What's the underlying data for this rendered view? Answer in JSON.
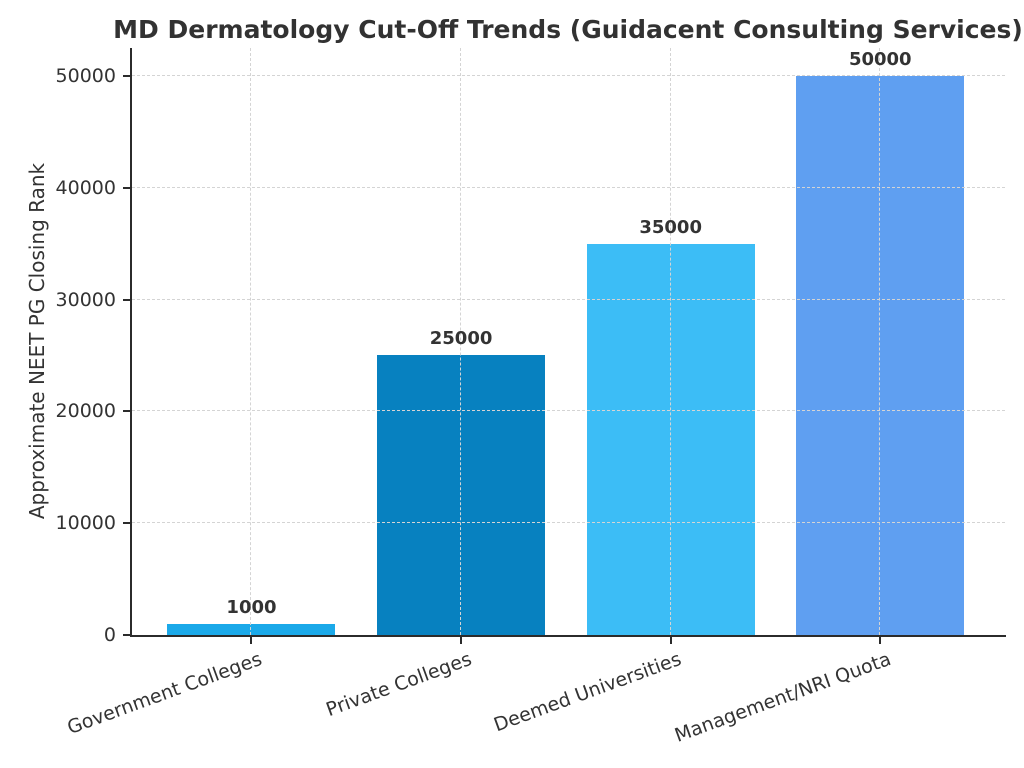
{
  "chart_data": {
    "type": "bar",
    "title": "MD Dermatology Cut-Off Trends (Guidacent Consulting Services)",
    "ylabel": "Approximate NEET PG Closing Rank",
    "xlabel": "",
    "categories": [
      "Government Colleges",
      "Private Colleges",
      "Deemed Universities",
      "Management/NRI Quota"
    ],
    "values": [
      1000,
      25000,
      35000,
      50000
    ],
    "bar_colors": [
      "#1BA9E9",
      "#0781C0",
      "#3CBDF6",
      "#5F9FF1"
    ],
    "yticks": [
      0,
      10000,
      20000,
      30000,
      40000,
      50000
    ],
    "ylim": [
      0,
      52500
    ],
    "grid": {
      "on": true,
      "style": "dashed",
      "color": "#d4d4d4",
      "drawn_above_bars": true
    },
    "legend_position": "none",
    "x_tick_rotation_deg": 20,
    "axis_color": "#2b2b2b",
    "text_color": "#333333"
  }
}
